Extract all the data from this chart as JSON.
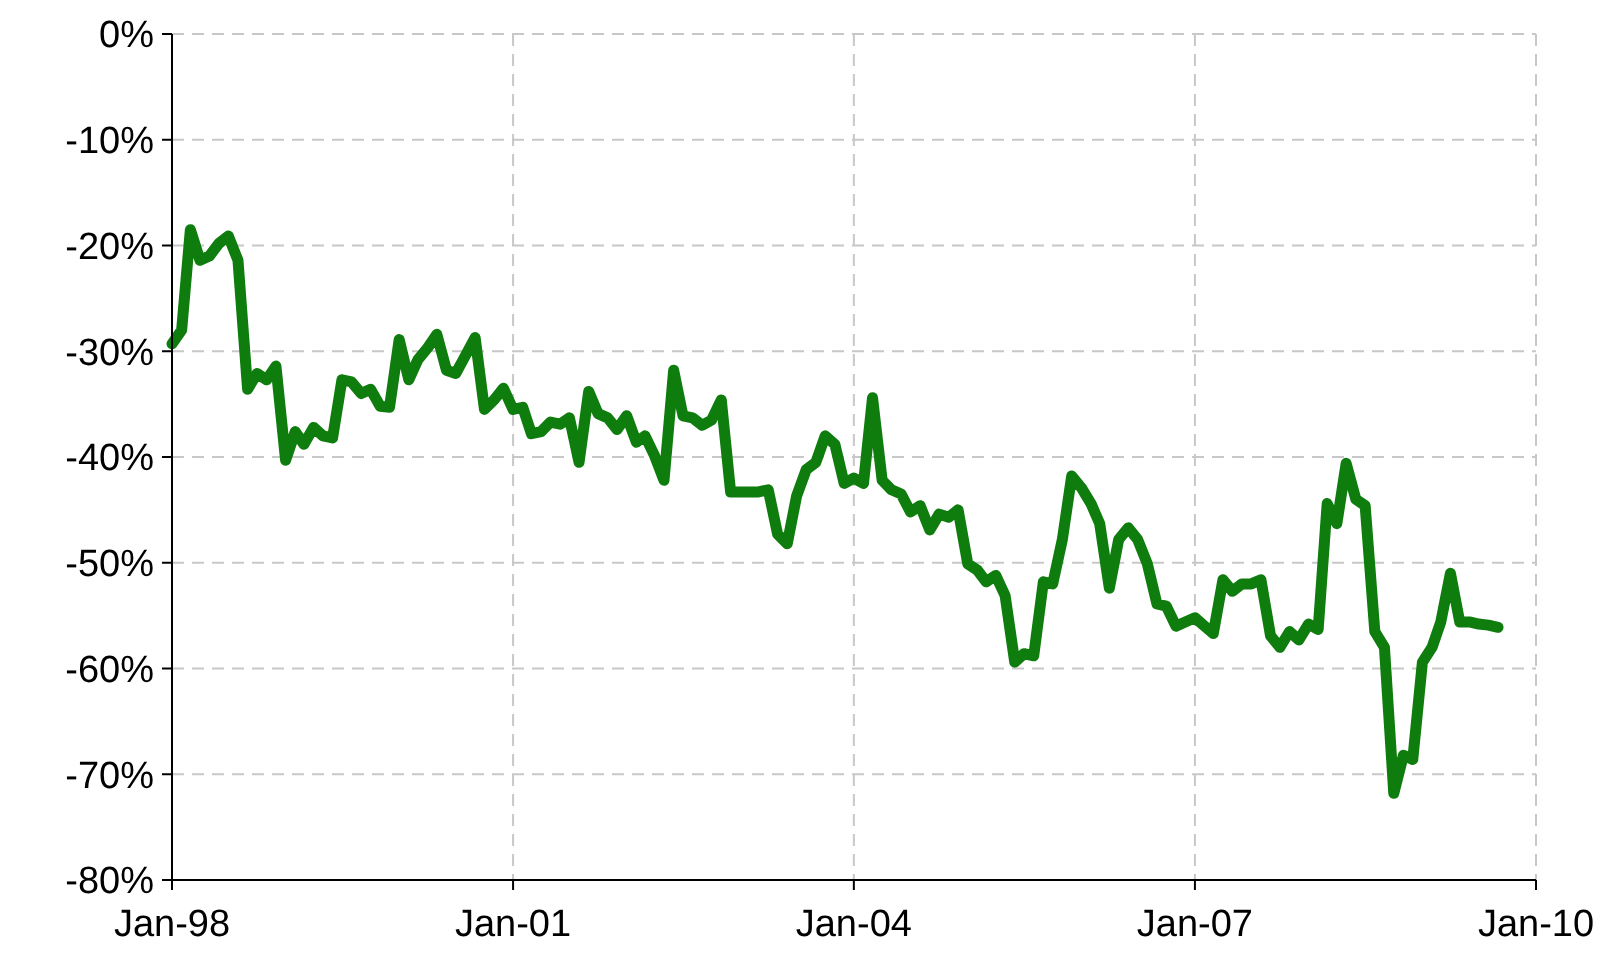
{
  "chart_data": {
    "type": "line",
    "x": [
      "1998-01",
      "1998-02",
      "1998-03",
      "1998-04",
      "1998-05",
      "1998-06",
      "1998-07",
      "1998-08",
      "1998-09",
      "1998-10",
      "1998-11",
      "1998-12",
      "1999-01",
      "1999-02",
      "1999-03",
      "1999-04",
      "1999-05",
      "1999-06",
      "1999-07",
      "1999-08",
      "1999-09",
      "1999-10",
      "1999-11",
      "1999-12",
      "2000-01",
      "2000-02",
      "2000-03",
      "2000-04",
      "2000-05",
      "2000-06",
      "2000-07",
      "2000-08",
      "2000-09",
      "2000-10",
      "2000-11",
      "2000-12",
      "2001-01",
      "2001-02",
      "2001-03",
      "2001-04",
      "2001-05",
      "2001-06",
      "2001-07",
      "2001-08",
      "2001-09",
      "2001-10",
      "2001-11",
      "2001-12",
      "2002-01",
      "2002-02",
      "2002-03",
      "2002-04",
      "2002-05",
      "2002-06",
      "2002-07",
      "2002-08",
      "2002-09",
      "2002-10",
      "2002-11",
      "2002-12",
      "2003-01",
      "2003-02",
      "2003-03",
      "2003-04",
      "2003-05",
      "2003-06",
      "2003-07",
      "2003-08",
      "2003-09",
      "2003-10",
      "2003-11",
      "2003-12",
      "2004-01",
      "2004-02",
      "2004-03",
      "2004-04",
      "2004-05",
      "2004-06",
      "2004-07",
      "2004-08",
      "2004-09",
      "2004-10",
      "2004-11",
      "2004-12",
      "2005-01",
      "2005-02",
      "2005-03",
      "2005-04",
      "2005-05",
      "2005-06",
      "2005-07",
      "2005-08",
      "2005-09",
      "2005-10",
      "2005-11",
      "2005-12",
      "2006-01",
      "2006-02",
      "2006-03",
      "2006-04",
      "2006-05",
      "2006-06",
      "2006-07",
      "2006-08",
      "2006-09",
      "2006-10",
      "2006-11",
      "2006-12",
      "2007-01",
      "2007-02",
      "2007-03",
      "2007-04",
      "2007-05",
      "2007-06",
      "2007-07",
      "2007-08",
      "2007-09",
      "2007-10",
      "2007-11",
      "2007-12",
      "2008-01",
      "2008-02",
      "2008-03",
      "2008-04",
      "2008-05",
      "2008-06",
      "2008-07",
      "2008-08",
      "2008-09",
      "2008-10",
      "2008-11",
      "2008-12",
      "2009-01",
      "2009-02",
      "2009-03",
      "2009-04",
      "2009-05",
      "2009-06",
      "2009-07",
      "2009-08",
      "2009-09"
    ],
    "series": [
      {
        "color": "#0e7d0e",
        "values": [
          -29.3,
          -28,
          -18.5,
          -21.4,
          -21,
          -19.8,
          -19.1,
          -21.4,
          -33.6,
          -32.1,
          -32.7,
          -31.4,
          -40.3,
          -37.6,
          -38.8,
          -37.2,
          -38,
          -38.2,
          -32.7,
          -32.9,
          -34,
          -33.6,
          -35.2,
          -35.3,
          -28.9,
          -32.7,
          -30.8,
          -29.7,
          -28.4,
          -31.8,
          -32.1,
          -30.4,
          -28.7,
          -35.5,
          -34.6,
          -33.5,
          -35.5,
          -35.3,
          -37.8,
          -37.6,
          -36.7,
          -36.9,
          -36.3,
          -40.5,
          -33.8,
          -35.9,
          -36.3,
          -37.4,
          -36.1,
          -38.6,
          -38,
          -39.9,
          -42.2,
          -31.8,
          -36.1,
          -36.3,
          -37,
          -36.5,
          -34.6,
          -43.3,
          -43.3,
          -43.3,
          -43.3,
          -43.1,
          -47.3,
          -48.2,
          -43.7,
          -41.2,
          -40.5,
          -38,
          -38.8,
          -42.5,
          -42,
          -42.5,
          -34.4,
          -42.2,
          -43.1,
          -43.5,
          -45.2,
          -44.6,
          -46.9,
          -45.4,
          -45.7,
          -45,
          -50.1,
          -50.7,
          -51.8,
          -51.2,
          -53.1,
          -59.4,
          -58.6,
          -58.8,
          -51.8,
          -52,
          -47.8,
          -41.8,
          -42.9,
          -44.4,
          -46.3,
          -52.4,
          -47.8,
          -46.7,
          -47.8,
          -50.1,
          -53.9,
          -54.1,
          -56,
          -55.6,
          -55.2,
          -56,
          -56.7,
          -51.6,
          -52.7,
          -52,
          -52,
          -51.6,
          -56.9,
          -58,
          -56.5,
          -57.3,
          -55.8,
          -56.3,
          -44.4,
          -46.3,
          -40.6,
          -44,
          -44.6,
          -56.5,
          -58,
          -71.8,
          -68.2,
          -68.6,
          -59.4,
          -58,
          -55.6,
          -51,
          -55.6,
          -55.6,
          -55.8,
          -55.9,
          -56.1
        ]
      }
    ],
    "xlim": [
      "1998-01",
      "2010-01"
    ],
    "xticks": [
      {
        "value": "1998-01",
        "label": "Jan-98"
      },
      {
        "value": "2001-01",
        "label": "Jan-01"
      },
      {
        "value": "2004-01",
        "label": "Jan-04"
      },
      {
        "value": "2007-01",
        "label": "Jan-07"
      },
      {
        "value": "2010-01",
        "label": "Jan-10"
      }
    ],
    "ylim": [
      -80,
      0
    ],
    "yticks": [
      {
        "value": -80,
        "label": "-80%"
      },
      {
        "value": -70,
        "label": "-70%"
      },
      {
        "value": -60,
        "label": "-60%"
      },
      {
        "value": -50,
        "label": "-50%"
      },
      {
        "value": -40,
        "label": "-40%"
      },
      {
        "value": -30,
        "label": "-30%"
      },
      {
        "value": -20,
        "label": "-20%"
      },
      {
        "value": -10,
        "label": "-10%"
      },
      {
        "value": 0,
        "label": "0%"
      }
    ],
    "grid": true,
    "marker": "none",
    "line_style": "solid"
  }
}
